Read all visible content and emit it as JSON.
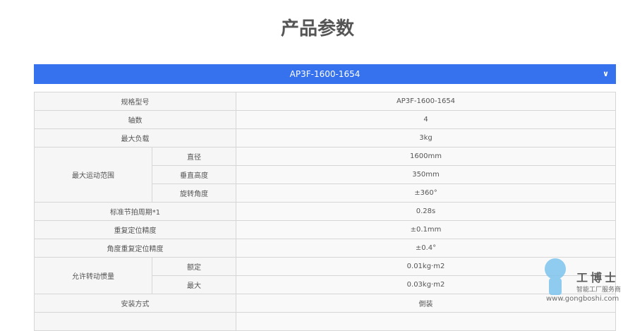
{
  "page_title": "产品参数",
  "model_selector": {
    "label": "AP3F-1600-1654",
    "icon": "chevron-down-icon"
  },
  "specs": [
    {
      "label": "规格型号",
      "value": "AP3F-1600-1654"
    },
    {
      "label": "轴数",
      "value": "4"
    },
    {
      "label": "最大负载",
      "value": "3kg"
    },
    {
      "label": "最大运动范围",
      "sub": [
        {
          "label": "直径",
          "value": "1600mm"
        },
        {
          "label": "垂直高度",
          "value": "350mm"
        },
        {
          "label": "旋转角度",
          "value": "±360°"
        }
      ]
    },
    {
      "label": "标准节拍周期*1",
      "value": "0.28s"
    },
    {
      "label": "重复定位精度",
      "value": "±0.1mm"
    },
    {
      "label": "角度重复定位精度",
      "value": "±0.4°"
    },
    {
      "label": "允许转动惯量",
      "sub": [
        {
          "label": "额定",
          "value": "0.01kg·m2"
        },
        {
          "label": "最大",
          "value": "0.03kg·m2"
        }
      ]
    },
    {
      "label": "安装方式",
      "value": "倒装"
    }
  ],
  "watermark": {
    "brand": "工博士",
    "slogan": "智能工厂服务商",
    "url": "www.gongboshi.com"
  }
}
